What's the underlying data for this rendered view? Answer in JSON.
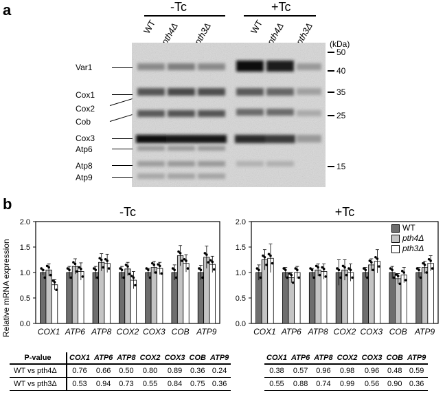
{
  "panel_a": {
    "letter": "a",
    "conditions": [
      "-Tc",
      "+Tc"
    ],
    "lanes": [
      "WT",
      "pth4Δ",
      "pth3Δ",
      "WT",
      "pth4Δ",
      "pth3Δ"
    ],
    "kda_label": "(kDa)",
    "markers": [
      "50",
      "40",
      "35",
      "25",
      "15"
    ],
    "bands": [
      "Var1",
      "Cox1",
      "Cox2",
      "Cob",
      "Cox3",
      "Atp6",
      "Atp8",
      "Atp9"
    ]
  },
  "panel_b": {
    "letter": "b",
    "ylabel": "Relative mRNA expression",
    "legend": [
      "WT",
      "pth4Δ",
      "pth3Δ"
    ],
    "colors": {
      "WT": "#6e6e6e",
      "pth4": "#c4c4c4",
      "pth3": "#ffffff"
    },
    "pvalue_header": "P-value",
    "pvalue_rows": [
      "WT vs pth4Δ",
      "WT vs pth3Δ"
    ]
  },
  "chart_data": [
    {
      "type": "bar",
      "title": "-Tc",
      "ylabel": "Relative mRNA expression",
      "ylim": [
        0,
        2.0
      ],
      "yticks": [
        "0.0",
        "0.5",
        "1.0",
        "1.5",
        "2.0"
      ],
      "categories": [
        "COX1",
        "ATP6",
        "ATP8",
        "COX2",
        "COX3",
        "COB",
        "ATP9"
      ],
      "series": [
        {
          "name": "WT",
          "values": [
            1.0,
            1.0,
            1.0,
            1.0,
            1.0,
            1.0,
            1.0
          ],
          "err": [
            0.05,
            0.12,
            0.12,
            0.12,
            0.08,
            0.15,
            0.14
          ]
        },
        {
          "name": "pth4Δ",
          "values": [
            1.05,
            1.12,
            1.2,
            1.07,
            1.1,
            1.33,
            1.3
          ],
          "err": [
            0.12,
            0.15,
            0.17,
            0.13,
            0.12,
            0.2,
            0.22
          ]
        },
        {
          "name": "pth3Δ",
          "values": [
            0.76,
            1.02,
            1.18,
            0.85,
            1.08,
            1.18,
            1.16
          ],
          "err": [
            0.1,
            0.17,
            0.18,
            0.17,
            0.12,
            0.17,
            0.16
          ]
        }
      ]
    },
    {
      "type": "bar",
      "title": "+Tc",
      "ylim": [
        0,
        2.0
      ],
      "yticks": [
        "0.0",
        "0.5",
        "1.0",
        "1.5",
        "2.0"
      ],
      "categories": [
        "COX1",
        "ATP6",
        "ATP8",
        "COX2",
        "COX3",
        "COB",
        "ATP9"
      ],
      "series": [
        {
          "name": "WT",
          "values": [
            1.0,
            1.0,
            1.0,
            1.0,
            1.0,
            1.0,
            1.0
          ],
          "err": [
            0.15,
            0.1,
            0.08,
            0.25,
            0.1,
            0.12,
            0.1
          ]
        },
        {
          "name": "pth4Δ",
          "values": [
            1.25,
            0.9,
            1.05,
            1.05,
            1.15,
            0.88,
            1.1
          ],
          "err": [
            0.2,
            0.1,
            0.12,
            0.2,
            0.12,
            0.1,
            0.12
          ]
        },
        {
          "name": "pth3Δ",
          "values": [
            1.28,
            1.0,
            1.02,
            1.0,
            1.22,
            0.95,
            1.18
          ],
          "err": [
            0.28,
            0.12,
            0.15,
            0.17,
            0.23,
            0.15,
            0.15
          ]
        }
      ]
    }
  ],
  "pvalue_table": {
    "columns": [
      "COX1",
      "ATP6",
      "ATP8",
      "COX2",
      "COX3",
      "COB",
      "ATP9"
    ],
    "minus_tc": [
      [
        "0.76",
        "0.66",
        "0.50",
        "0.80",
        "0.89",
        "0.36",
        "0.24"
      ],
      [
        "0.53",
        "0.94",
        "0.73",
        "0.55",
        "0.84",
        "0.75",
        "0.36"
      ]
    ],
    "plus_tc": [
      [
        "0.38",
        "0.57",
        "0.96",
        "0.98",
        "0.96",
        "0.48",
        "0.59"
      ],
      [
        "0.55",
        "0.88",
        "0.74",
        "0.99",
        "0.56",
        "0.90",
        "0.36"
      ]
    ]
  }
}
